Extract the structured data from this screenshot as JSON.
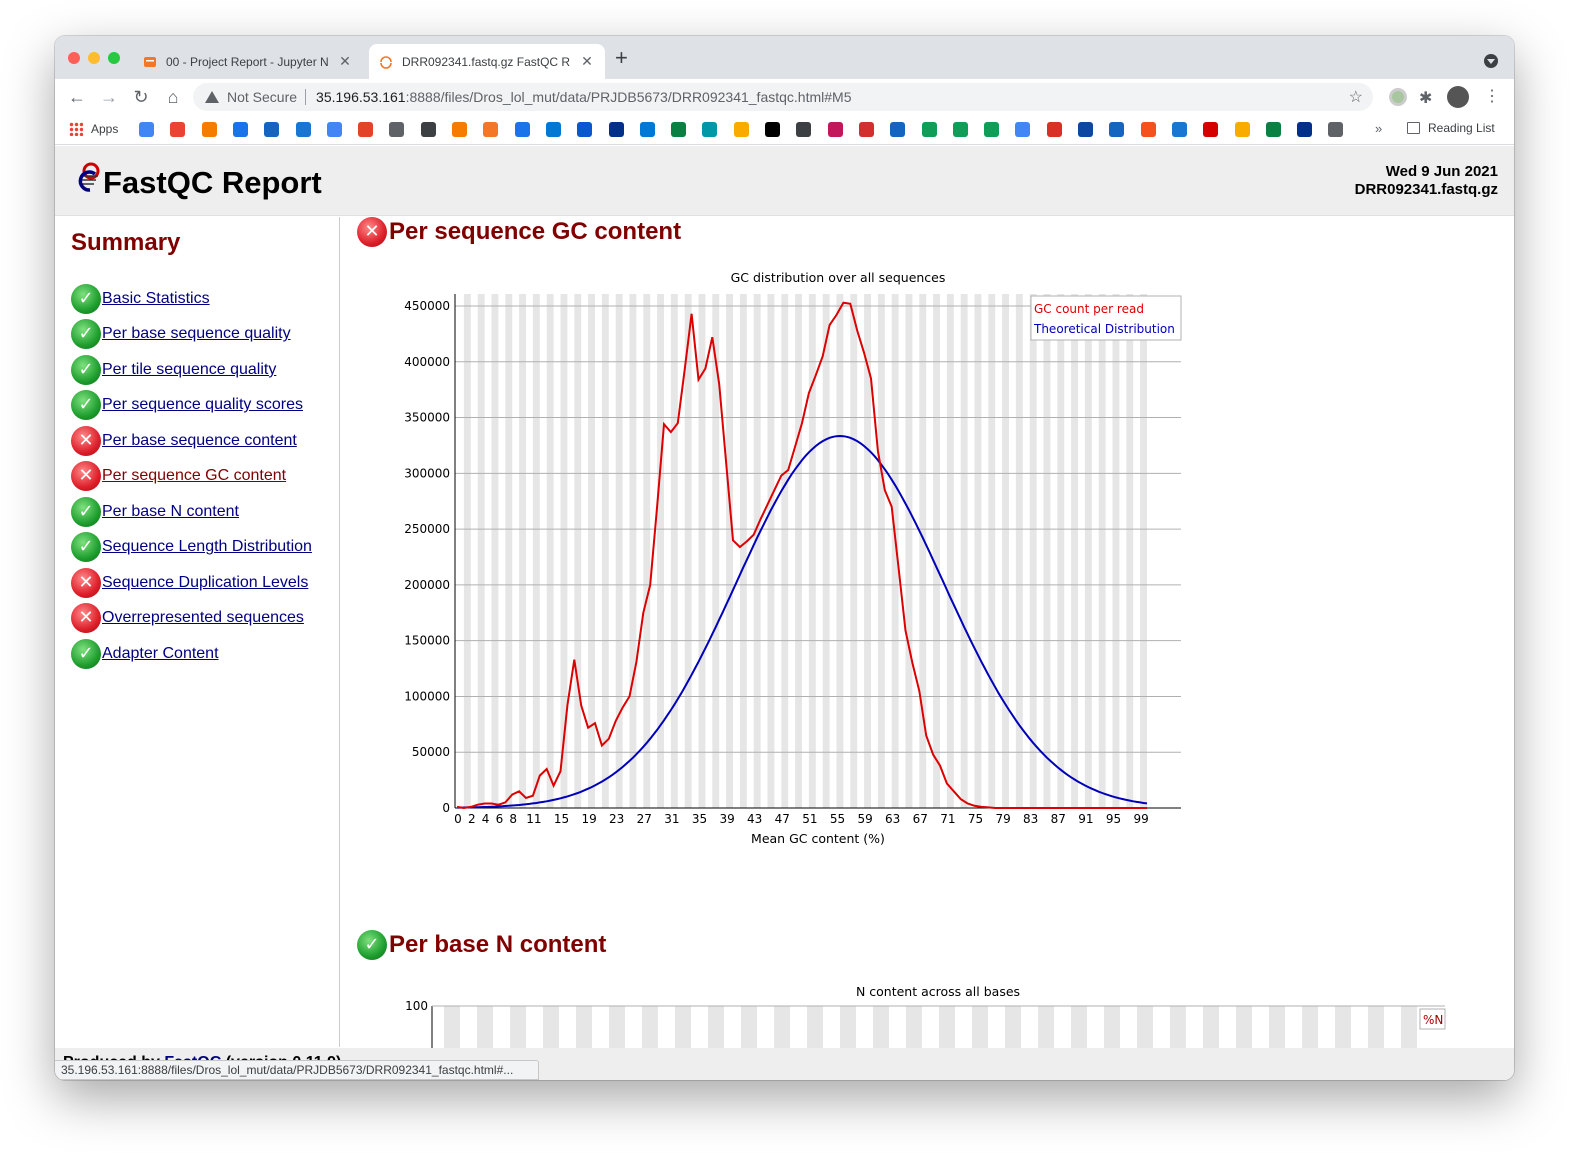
{
  "browser": {
    "tabs": [
      {
        "label": "00 - Project Report - Jupyter N",
        "active": false
      },
      {
        "label": "DRR092341.fastq.gz FastQC R",
        "active": true
      }
    ],
    "new_tab": "+",
    "security_label": "Not Secure",
    "url_host": "35.196.53.161",
    "url_path": ":8888/files/Dros_lol_mut/data/PRJDB5673/DRR092341_fastqc.html#M5",
    "bookmarks_apps": "Apps",
    "bookmarks_more": "»",
    "reading_list": "Reading List",
    "status_url": "35.196.53.161:8888/files/Dros_lol_mut/data/PRJDB5673/DRR092341_fastqc.html#..."
  },
  "report": {
    "title": "FastQC Report",
    "date": "Wed 9 Jun 2021",
    "filename": "DRR092341.fastq.gz",
    "summary_heading": "Summary",
    "summary": [
      {
        "label": "Basic Statistics",
        "status": "pass"
      },
      {
        "label": "Per base sequence quality",
        "status": "pass"
      },
      {
        "label": "Per tile sequence quality",
        "status": "pass"
      },
      {
        "label": "Per sequence quality scores",
        "status": "pass"
      },
      {
        "label": "Per base sequence content",
        "status": "fail"
      },
      {
        "label": "Per sequence GC content",
        "status": "fail"
      },
      {
        "label": "Per base N content",
        "status": "pass"
      },
      {
        "label": "Sequence Length Distribution",
        "status": "pass"
      },
      {
        "label": "Sequence Duplication Levels",
        "status": "fail"
      },
      {
        "label": "Overrepresented sequences",
        "status": "fail"
      },
      {
        "label": "Adapter Content",
        "status": "pass"
      }
    ],
    "module1_title": "Per sequence GC content",
    "module2_title": "Per base N content",
    "footer_prefix": "Produced by ",
    "footer_link": "FastQC",
    "footer_suffix": " (version 0.11.9)"
  },
  "chart_data": [
    {
      "type": "line",
      "title": "GC distribution over all sequences",
      "xlabel": "Mean GC content (%)",
      "ylabel": "",
      "ylim": [
        0,
        450000
      ],
      "xlim": [
        0,
        100
      ],
      "yticks": [
        0,
        50000,
        100000,
        150000,
        200000,
        250000,
        300000,
        350000,
        400000,
        450000
      ],
      "xtick_labels": [
        "0",
        "2",
        "4",
        "6",
        "8",
        "11",
        "15",
        "19",
        "23",
        "27",
        "31",
        "35",
        "39",
        "43",
        "47",
        "51",
        "55",
        "59",
        "63",
        "67",
        "71",
        "75",
        "79",
        "83",
        "87",
        "91",
        "95",
        "99"
      ],
      "legend_position": "top-right",
      "series": [
        {
          "name": "GC count per read",
          "color": "#dd0000",
          "x": [
            0,
            1,
            2,
            3,
            4,
            5,
            6,
            7,
            8,
            9,
            10,
            11,
            12,
            13,
            14,
            15,
            16,
            17,
            18,
            19,
            20,
            21,
            22,
            23,
            24,
            25,
            26,
            27,
            28,
            29,
            30,
            31,
            32,
            33,
            34,
            35,
            36,
            37,
            38,
            39,
            40,
            41,
            42,
            43,
            44,
            45,
            46,
            47,
            48,
            49,
            50,
            51,
            52,
            53,
            54,
            55,
            56,
            57,
            58,
            59,
            60,
            61,
            62,
            63,
            64,
            65,
            66,
            67,
            68,
            69,
            70,
            71,
            72,
            73,
            74,
            75,
            76,
            77,
            78,
            79,
            80,
            100
          ],
          "y": [
            1000,
            0,
            1000,
            3000,
            4000,
            4000,
            3000,
            5000,
            12000,
            15000,
            9000,
            11000,
            29000,
            35000,
            20000,
            33000,
            92000,
            133000,
            92000,
            72000,
            76000,
            56000,
            62000,
            78000,
            90000,
            100000,
            131000,
            175000,
            200000,
            270000,
            344000,
            337000,
            345000,
            393000,
            443000,
            384000,
            394000,
            422000,
            380000,
            310000,
            240000,
            234000,
            239000,
            245000,
            259000,
            272000,
            285000,
            298000,
            303000,
            324000,
            345000,
            372000,
            388000,
            405000,
            433000,
            442000,
            453000,
            452000,
            428000,
            408000,
            385000,
            320000,
            285000,
            270000,
            215000,
            159000,
            130000,
            105000,
            65000,
            48000,
            38000,
            22000,
            15000,
            8000,
            4000,
            2000,
            1000,
            500,
            0,
            0,
            0,
            0
          ]
        },
        {
          "name": "Theoretical Distribution",
          "color": "#0000bb",
          "mean": 55.5,
          "sd": 15,
          "peak": 333500,
          "x": [
            0,
            5,
            10,
            15,
            20,
            25,
            30,
            35,
            40,
            45,
            50,
            55,
            60,
            65,
            70,
            75,
            80,
            85,
            90,
            95,
            100
          ],
          "y": [
            2000,
            5500,
            11000,
            23000,
            42000,
            72000,
            110000,
            160000,
            212000,
            265000,
            310000,
            333500,
            318000,
            280000,
            222000,
            160000,
            108000,
            64000,
            36000,
            19000,
            13000
          ]
        }
      ]
    },
    {
      "type": "line",
      "title": "N content across all bases",
      "ylim": [
        0,
        100
      ],
      "yticks": [
        100
      ],
      "legend_position": "top-right",
      "series": [
        {
          "name": "%N",
          "color": "#aa0000"
        }
      ]
    }
  ]
}
